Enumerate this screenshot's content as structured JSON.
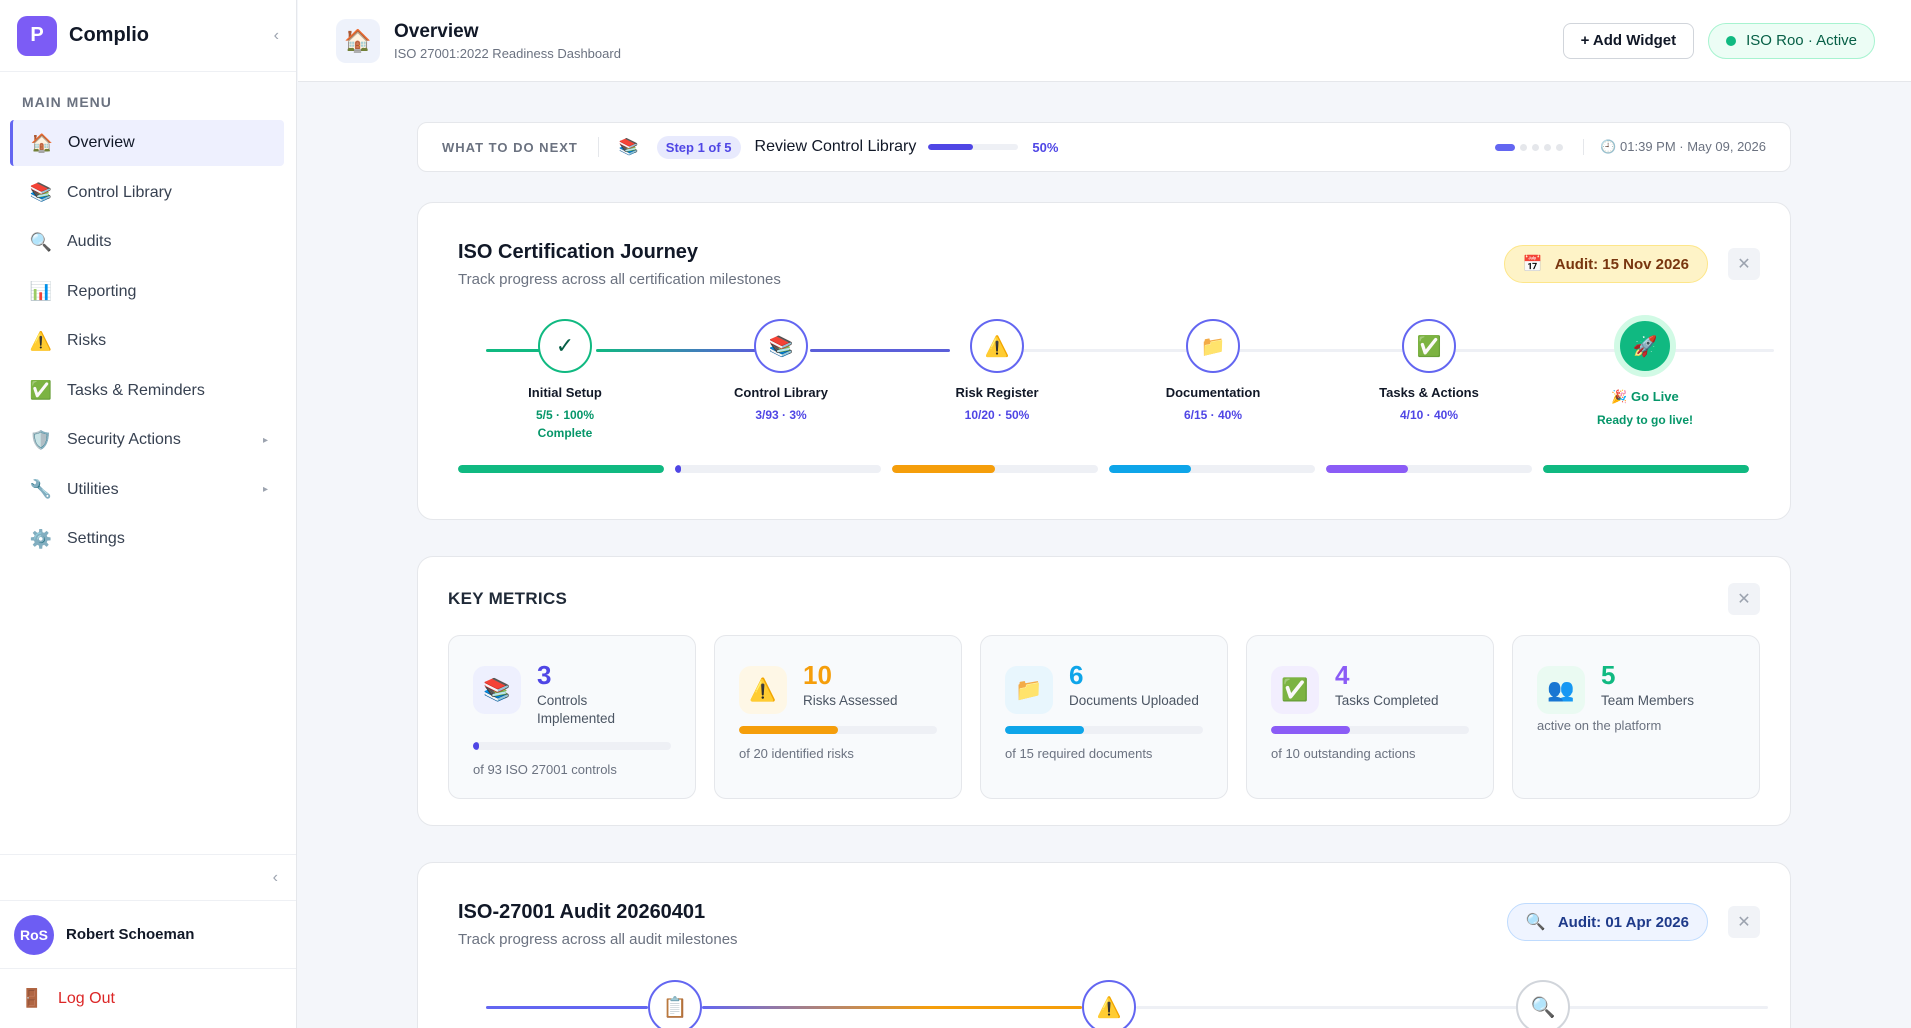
{
  "sidebar": {
    "brand_initial": "P",
    "brand_name": "Complio",
    "menu_title": "MAIN MENU",
    "items": [
      {
        "label": "Overview",
        "icon": "🏠"
      },
      {
        "label": "Control Library",
        "icon": "📚"
      },
      {
        "label": "Audits",
        "icon": "🔍"
      },
      {
        "label": "Reporting",
        "icon": "📊"
      },
      {
        "label": "Risks",
        "icon": "⚠️"
      },
      {
        "label": "Tasks & Reminders",
        "icon": "✅"
      },
      {
        "label": "Security Actions",
        "icon": "🛡️"
      },
      {
        "label": "Utilities",
        "icon": "🔧"
      },
      {
        "label": "Settings",
        "icon": "⚙️"
      }
    ],
    "user_initials": "RoS",
    "user_name": "Robert Schoeman",
    "logout_label": "Log Out"
  },
  "header": {
    "title": "Overview",
    "subtitle": "ISO 27001:2022 Readiness Dashboard",
    "add_widget": "+ Add Widget",
    "status": "ISO Roo · Active"
  },
  "next": {
    "label": "WHAT TO DO NEXT",
    "step": "Step 1 of 5",
    "text": "Review Control Library",
    "progress": 50,
    "pct": "50%",
    "time": "01:39 PM · May 09, 2026"
  },
  "journey": {
    "title": "ISO Certification Journey",
    "subtitle": "Track progress across all certification milestones",
    "audit": "Audit: 15 Nov 2026",
    "milestones": [
      {
        "name": "Initial Setup",
        "stat": "5/5 · 100%",
        "sub": "Complete",
        "icon": "✓",
        "progress": 100,
        "color": "#10b981"
      },
      {
        "name": "Control Library",
        "stat": "3/93 · 3%",
        "sub": "",
        "icon": "📚",
        "progress": 3,
        "color": "#4f46e5"
      },
      {
        "name": "Risk Register",
        "stat": "10/20 · 50%",
        "sub": "",
        "icon": "⚠️",
        "progress": 50,
        "color": "#f59e0b"
      },
      {
        "name": "Documentation",
        "stat": "6/15 · 40%",
        "sub": "",
        "icon": "📁",
        "progress": 40,
        "color": "#0ea5e9"
      },
      {
        "name": "Tasks & Actions",
        "stat": "4/10 · 40%",
        "sub": "",
        "icon": "✅",
        "progress": 40,
        "color": "#8b5cf6"
      },
      {
        "name": "🎉 Go Live",
        "stat": "",
        "sub": "Ready to go live!",
        "icon": "🚀",
        "progress": 100,
        "color": "#10b981"
      }
    ]
  },
  "metrics": {
    "title": "KEY METRICS",
    "items": [
      {
        "value": "3",
        "label": "Controls Implemented",
        "note": "of 93 ISO 27001 controls",
        "progress": 3,
        "color": "#4f46e5",
        "icon": "📚"
      },
      {
        "value": "10",
        "label": "Risks Assessed",
        "note": "of 20 identified risks",
        "progress": 50,
        "color": "#f59e0b",
        "icon": "⚠️"
      },
      {
        "value": "6",
        "label": "Documents Uploaded",
        "note": "of 15 required documents",
        "progress": 40,
        "color": "#0ea5e9",
        "icon": "📁"
      },
      {
        "value": "4",
        "label": "Tasks Completed",
        "note": "of 10 outstanding actions",
        "progress": 40,
        "color": "#8b5cf6",
        "icon": "✅"
      },
      {
        "value": "5",
        "label": "Team Members",
        "note": "active on the platform",
        "progress": null,
        "color": "#10b981",
        "icon": "👥"
      }
    ]
  },
  "audit_card": {
    "title": "ISO-27001 Audit 20260401",
    "subtitle": "Track progress across all audit milestones",
    "audit": "Audit: 01 Apr 2026",
    "icons": [
      "📋",
      "⚠️",
      "🔍"
    ]
  }
}
